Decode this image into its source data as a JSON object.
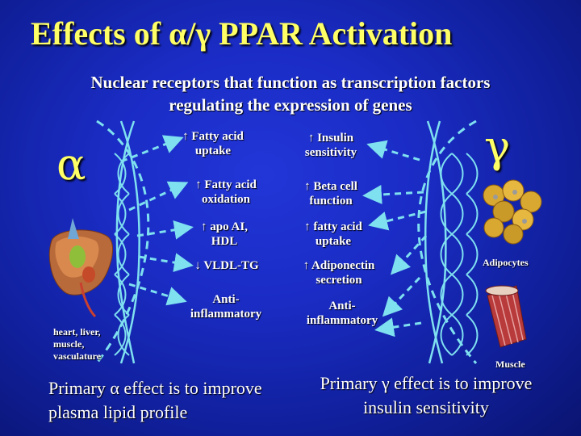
{
  "title": "Effects of α/γ PPAR Activation",
  "subtitle_line1": "Nuclear receptors that function as transcription factors",
  "subtitle_line2": "regulating the expression of genes",
  "alpha": {
    "symbol": "α",
    "tissue_label": "heart, liver, muscle, vasculature",
    "effects": [
      {
        "arrow": "↑",
        "text": "Fatty acid uptake"
      },
      {
        "arrow": "↑",
        "text": "Fatty acid oxidation"
      },
      {
        "arrow": "↑",
        "text": "apo AI, HDL"
      },
      {
        "arrow": "↓",
        "text": "VLDL-TG"
      },
      {
        "arrow": "",
        "text": "Anti-inflammatory"
      }
    ],
    "summary": "Primary α effect is to improve plasma lipid profile"
  },
  "gamma": {
    "symbol": "γ",
    "adipocytes_label": "Adipocytes",
    "muscle_label": "Muscle",
    "effects": [
      {
        "arrow": "↑",
        "text": "Insulin sensitivity"
      },
      {
        "arrow": "↑",
        "text": "Beta cell function"
      },
      {
        "arrow": "↑",
        "text": "fatty acid uptake"
      },
      {
        "arrow": "↑",
        "text": "Adiponectin secretion"
      },
      {
        "arrow": "",
        "text": "Anti-inflammatory"
      }
    ],
    "summary": "Primary γ effect is to improve insulin sensitivity"
  },
  "colors": {
    "background": "#1a2cc4",
    "title": "#ffff66",
    "arrows": "#7fe0f0",
    "helix": "#7fe0f0"
  }
}
